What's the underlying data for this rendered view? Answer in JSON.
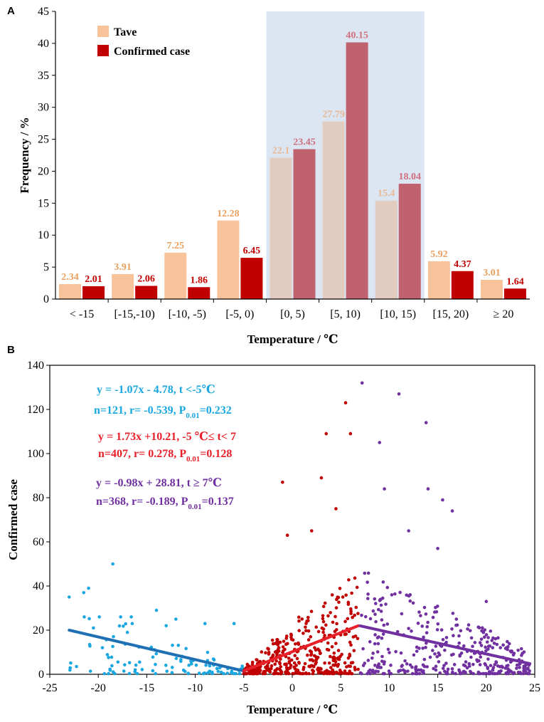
{
  "chart_data": [
    {
      "panel": "A",
      "type": "bar",
      "title": "",
      "xlabel": "Temperature / ℃",
      "ylabel": "Frequency / %",
      "ylim": [
        0,
        45
      ],
      "yticks": [
        0,
        5,
        10,
        15,
        20,
        25,
        30,
        35,
        40,
        45
      ],
      "categories": [
        "< -15",
        "[-15,-10)",
        "[-10, -5)",
        "[-5, 0)",
        "[0, 5)",
        "[5, 10)",
        "[10, 15)",
        "[15, 20)",
        "≥ 20"
      ],
      "highlight_categories": [
        4,
        5,
        6
      ],
      "legend_position": "top-left",
      "series": [
        {
          "name": "Tave",
          "color": "#F8C39B",
          "label_color": "#E8A060",
          "values": [
            2.34,
            3.91,
            7.25,
            12.28,
            22.1,
            27.79,
            15.4,
            5.92,
            3.01
          ],
          "labels": [
            "2.34",
            "3.91",
            "7.25",
            "12.28",
            "22.1",
            "27.79",
            "15.4",
            "5.92",
            "3.01"
          ]
        },
        {
          "name": "Confirmed case",
          "color": "#C00000",
          "label_color": "#C00000",
          "values": [
            2.01,
            2.06,
            1.86,
            6.45,
            23.45,
            40.15,
            18.04,
            4.37,
            1.64
          ],
          "labels": [
            "2.01",
            "2.06",
            "1.86",
            "6.45",
            "23.45",
            "40.15",
            "18.04",
            "4.37",
            "1.64"
          ]
        }
      ],
      "colors": {
        "highlight_band": "#DCE6F2",
        "tave_in_band": "#E2CCBF",
        "case_in_band": "#C0616E",
        "label_in_band_tave": "#E8B896",
        "label_in_band_case": "#D07080"
      }
    },
    {
      "panel": "B",
      "type": "scatter",
      "title": "",
      "xlabel": "Temperature / ℃",
      "ylabel": "Confirmed case",
      "xlim": [
        -25,
        25
      ],
      "ylim": [
        0,
        140
      ],
      "xticks": [
        -25,
        -20,
        -15,
        -10,
        -5,
        0,
        5,
        10,
        15,
        20,
        25
      ],
      "yticks": [
        0,
        20,
        40,
        60,
        80,
        100,
        120,
        140
      ],
      "series": [
        {
          "name": "t < -5℃",
          "color": "#1AA7E0",
          "line_color": "#1F6FB4",
          "n": 121,
          "fit": {
            "slope": -1.07,
            "intercept": -4.78,
            "x_range": [
              -23,
              -5
            ]
          },
          "sample_points": [
            [
              -23,
              35
            ],
            [
              -21.5,
              37
            ],
            [
              -21,
              39
            ],
            [
              -20.5,
              21
            ],
            [
              -18.5,
              50
            ],
            [
              -17,
              19
            ],
            [
              -16.5,
              23
            ],
            [
              -14,
              29
            ],
            [
              -13,
              22
            ],
            [
              -12,
              25
            ],
            [
              -9,
              23
            ],
            [
              -6,
              23
            ]
          ],
          "equation": "y = -1.07x - 4.78,   t <-5℃",
          "stats": {
            "prefix": "n=121, r= -0.539, P",
            "sub": "0.01",
            "suffix": "=0.232"
          }
        },
        {
          "name": "-5 ℃≤ t< 7",
          "color": "#C00000",
          "line_color": "#E8202A",
          "n": 407,
          "fit": {
            "slope": 1.73,
            "intercept": 10.21,
            "x_range": [
              -5,
              6.8
            ]
          },
          "sample_points": [
            [
              -1,
              87
            ],
            [
              -0.5,
              63
            ],
            [
              3,
              89
            ],
            [
              3.5,
              109
            ],
            [
              4.5,
              75
            ],
            [
              5.5,
              123
            ],
            [
              6,
              109
            ],
            [
              2,
              65
            ]
          ],
          "equation": "y = 1.73x +10.21, -5 ℃≤ t< 7",
          "stats": {
            "prefix": "n=407, r=  0.278,  P",
            "sub": "0.01",
            "suffix": "=0.128"
          }
        },
        {
          "name": "t ≥ 7℃",
          "color": "#7030A0",
          "line_color": "#7030A0",
          "n": 368,
          "fit": {
            "slope": -0.98,
            "intercept": 28.81,
            "x_range": [
              7,
              24.5
            ]
          },
          "sample_points": [
            [
              7.2,
              132
            ],
            [
              9,
              105
            ],
            [
              11,
              127
            ],
            [
              13.8,
              114
            ],
            [
              14,
              84
            ],
            [
              15.5,
              79
            ],
            [
              16.5,
              74
            ],
            [
              9.5,
              84
            ],
            [
              12,
              65
            ],
            [
              15,
              57
            ],
            [
              20,
              33
            ]
          ],
          "equation": "y = -0.98x + 28.81,   t ≥ 7℃",
          "stats": {
            "prefix": "n=368, r= -0.189, P",
            "sub": "0.01",
            "suffix": "=0.137"
          }
        }
      ]
    }
  ]
}
